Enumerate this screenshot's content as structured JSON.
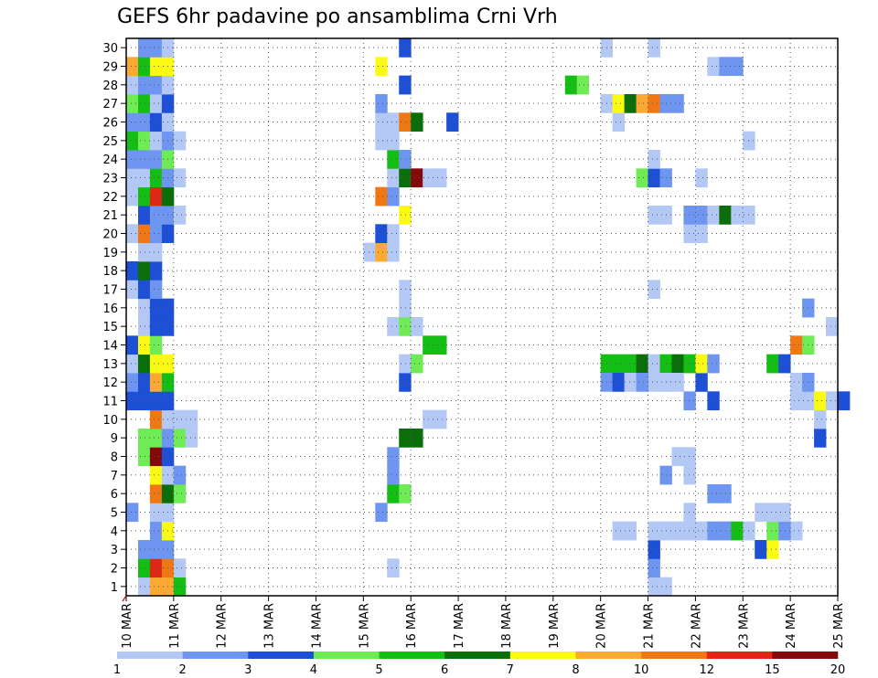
{
  "chart_data": {
    "type": "heatmap",
    "title": "GEFS 6hr padavine po ansamblima Crni Vrh",
    "xlabel": "",
    "ylabel": "",
    "x_tick_labels": [
      "10 MAR",
      "11 MAR",
      "12 MAR",
      "13 MAR",
      "14 MAR",
      "15 MAR",
      "16 MAR",
      "17 MAR",
      "18 MAR",
      "19 MAR",
      "20 MAR",
      "21 MAR",
      "22 MAR",
      "23 MAR",
      "24 MAR",
      "25 MAR"
    ],
    "y_tick_labels": [
      "1",
      "2",
      "3",
      "4",
      "5",
      "6",
      "7",
      "8",
      "9",
      "10",
      "11",
      "12",
      "13",
      "14",
      "15",
      "16",
      "17",
      "18",
      "19",
      "20",
      "21",
      "22",
      "23",
      "24",
      "25",
      "26",
      "27",
      "28",
      "29",
      "30"
    ],
    "x_range_hours": [
      0,
      360
    ],
    "y_range": [
      0.5,
      30.5
    ],
    "time_step_hours": 6,
    "grid": true,
    "colorbar": {
      "position": "bottom",
      "tick_labels": [
        "1",
        "2",
        "3",
        "4",
        "5",
        "6",
        "7",
        "8",
        "10",
        "12",
        "15",
        "20"
      ],
      "colors": [
        "#b4c8f5",
        "#6e96f0",
        "#1e50d7",
        "#6eeb55",
        "#14be14",
        "#0a6e0a",
        "#fafa14",
        "#faaa32",
        "#f07814",
        "#dc2814",
        "#820a0a"
      ]
    },
    "cells": [
      [
        1,
        1,
        0
      ],
      [
        1,
        2,
        7
      ],
      [
        1,
        3,
        7
      ],
      [
        1,
        4,
        4
      ],
      [
        2,
        1,
        4
      ],
      [
        2,
        2,
        9
      ],
      [
        2,
        3,
        8
      ],
      [
        2,
        4,
        0
      ],
      [
        3,
        1,
        1
      ],
      [
        3,
        2,
        1
      ],
      [
        3,
        3,
        1
      ],
      [
        4,
        2,
        1
      ],
      [
        4,
        3,
        6
      ],
      [
        5,
        0,
        1
      ],
      [
        5,
        2,
        0
      ],
      [
        5,
        3,
        0
      ],
      [
        6,
        2,
        8
      ],
      [
        6,
        3,
        5
      ],
      [
        6,
        4,
        3
      ],
      [
        7,
        2,
        6
      ],
      [
        7,
        3,
        0
      ],
      [
        7,
        4,
        1
      ],
      [
        8,
        1,
        3
      ],
      [
        8,
        2,
        10
      ],
      [
        8,
        3,
        2
      ],
      [
        9,
        1,
        3
      ],
      [
        9,
        2,
        3
      ],
      [
        9,
        3,
        1
      ],
      [
        9,
        4,
        3
      ],
      [
        9,
        5,
        0
      ],
      [
        10,
        2,
        8
      ],
      [
        10,
        3,
        0
      ],
      [
        10,
        4,
        0
      ],
      [
        10,
        5,
        0
      ],
      [
        11,
        0,
        2
      ],
      [
        11,
        1,
        2
      ],
      [
        11,
        2,
        2
      ],
      [
        11,
        3,
        2
      ],
      [
        12,
        0,
        1
      ],
      [
        12,
        1,
        2
      ],
      [
        12,
        2,
        7
      ],
      [
        12,
        3,
        4
      ],
      [
        13,
        0,
        0
      ],
      [
        13,
        1,
        5
      ],
      [
        13,
        2,
        6
      ],
      [
        13,
        3,
        6
      ],
      [
        14,
        0,
        2
      ],
      [
        14,
        1,
        6
      ],
      [
        14,
        2,
        3
      ],
      [
        15,
        1,
        0
      ],
      [
        15,
        2,
        2
      ],
      [
        15,
        3,
        2
      ],
      [
        16,
        1,
        0
      ],
      [
        16,
        2,
        2
      ],
      [
        16,
        3,
        2
      ],
      [
        17,
        0,
        0
      ],
      [
        17,
        1,
        2
      ],
      [
        17,
        2,
        1
      ],
      [
        18,
        0,
        2
      ],
      [
        18,
        1,
        5
      ],
      [
        18,
        2,
        2
      ],
      [
        19,
        1,
        0
      ],
      [
        19,
        2,
        0
      ],
      [
        20,
        0,
        0
      ],
      [
        20,
        1,
        8
      ],
      [
        20,
        2,
        1
      ],
      [
        20,
        3,
        2
      ],
      [
        21,
        1,
        2
      ],
      [
        21,
        2,
        1
      ],
      [
        21,
        3,
        1
      ],
      [
        21,
        4,
        0
      ],
      [
        22,
        0,
        0
      ],
      [
        22,
        1,
        4
      ],
      [
        22,
        2,
        9
      ],
      [
        22,
        3,
        5
      ],
      [
        23,
        0,
        0
      ],
      [
        23,
        1,
        0
      ],
      [
        23,
        2,
        4
      ],
      [
        23,
        3,
        1
      ],
      [
        23,
        4,
        0
      ],
      [
        24,
        0,
        1
      ],
      [
        24,
        1,
        1
      ],
      [
        24,
        2,
        1
      ],
      [
        24,
        3,
        3
      ],
      [
        25,
        0,
        4
      ],
      [
        25,
        1,
        3
      ],
      [
        25,
        2,
        0
      ],
      [
        25,
        3,
        1
      ],
      [
        25,
        4,
        0
      ],
      [
        26,
        0,
        1
      ],
      [
        26,
        1,
        1
      ],
      [
        26,
        2,
        2
      ],
      [
        26,
        3,
        0
      ],
      [
        27,
        0,
        3
      ],
      [
        27,
        1,
        4
      ],
      [
        27,
        2,
        0
      ],
      [
        27,
        3,
        2
      ],
      [
        28,
        0,
        0
      ],
      [
        28,
        1,
        1
      ],
      [
        28,
        2,
        1
      ],
      [
        28,
        3,
        0
      ],
      [
        29,
        0,
        7
      ],
      [
        29,
        1,
        4
      ],
      [
        29,
        2,
        6
      ],
      [
        29,
        3,
        6
      ],
      [
        30,
        1,
        1
      ],
      [
        30,
        2,
        1
      ],
      [
        30,
        3,
        0
      ],
      [
        2,
        22,
        0
      ],
      [
        5,
        21,
        1
      ],
      [
        6,
        22,
        4
      ],
      [
        6,
        23,
        3
      ],
      [
        7,
        22,
        1
      ],
      [
        8,
        22,
        1
      ],
      [
        9,
        23,
        5
      ],
      [
        9,
        24,
        5
      ],
      [
        10,
        25,
        0
      ],
      [
        10,
        26,
        0
      ],
      [
        12,
        23,
        2
      ],
      [
        13,
        23,
        0
      ],
      [
        13,
        24,
        3
      ],
      [
        14,
        25,
        4
      ],
      [
        14,
        26,
        4
      ],
      [
        15,
        22,
        0
      ],
      [
        15,
        23,
        3
      ],
      [
        15,
        24,
        0
      ],
      [
        16,
        23,
        0
      ],
      [
        17,
        23,
        0
      ],
      [
        19,
        20,
        0
      ],
      [
        19,
        21,
        7
      ],
      [
        19,
        22,
        0
      ],
      [
        20,
        21,
        2
      ],
      [
        20,
        22,
        0
      ],
      [
        21,
        23,
        6
      ],
      [
        22,
        21,
        8
      ],
      [
        22,
        22,
        1
      ],
      [
        23,
        22,
        0
      ],
      [
        23,
        23,
        5
      ],
      [
        23,
        24,
        10
      ],
      [
        23,
        25,
        0
      ],
      [
        23,
        26,
        0
      ],
      [
        24,
        22,
        4
      ],
      [
        24,
        23,
        1
      ],
      [
        25,
        21,
        0
      ],
      [
        25,
        22,
        0
      ],
      [
        26,
        21,
        0
      ],
      [
        26,
        22,
        0
      ],
      [
        26,
        23,
        8
      ],
      [
        26,
        24,
        5
      ],
      [
        26,
        27,
        2
      ],
      [
        27,
        21,
        1
      ],
      [
        28,
        23,
        2
      ],
      [
        29,
        21,
        6
      ],
      [
        30,
        23,
        2
      ],
      [
        1,
        44,
        0
      ],
      [
        1,
        45,
        0
      ],
      [
        2,
        44,
        1
      ],
      [
        3,
        44,
        2
      ],
      [
        4,
        41,
        0
      ],
      [
        4,
        42,
        0
      ],
      [
        4,
        44,
        0
      ],
      [
        4,
        45,
        0
      ],
      [
        4,
        46,
        0
      ],
      [
        4,
        47,
        0
      ],
      [
        4,
        48,
        0
      ],
      [
        4,
        49,
        1
      ],
      [
        4,
        50,
        1
      ],
      [
        4,
        51,
        4
      ],
      [
        4,
        52,
        0
      ],
      [
        4,
        56,
        0
      ],
      [
        5,
        47,
        0
      ],
      [
        5,
        53,
        0
      ],
      [
        6,
        49,
        1
      ],
      [
        6,
        50,
        1
      ],
      [
        7,
        45,
        1
      ],
      [
        7,
        47,
        0
      ],
      [
        8,
        46,
        0
      ],
      [
        8,
        47,
        0
      ],
      [
        9,
        58,
        2
      ],
      [
        11,
        47,
        1
      ],
      [
        11,
        49,
        2
      ],
      [
        12,
        44,
        0
      ],
      [
        12,
        48,
        2
      ],
      [
        13,
        54,
        4
      ],
      [
        13,
        55,
        2
      ],
      [
        13,
        40,
        4
      ],
      [
        13,
        41,
        4
      ],
      [
        13,
        42,
        4
      ],
      [
        13,
        43,
        5
      ],
      [
        13,
        44,
        0
      ],
      [
        13,
        45,
        4
      ],
      [
        13,
        46,
        5
      ],
      [
        13,
        47,
        4
      ],
      [
        13,
        48,
        6
      ],
      [
        13,
        49,
        1
      ],
      [
        3,
        53,
        2
      ],
      [
        3,
        54,
        6
      ],
      [
        4,
        54,
        3
      ],
      [
        4,
        55,
        1
      ],
      [
        5,
        54,
        0
      ],
      [
        5,
        55,
        0
      ],
      [
        10,
        58,
        0
      ],
      [
        11,
        57,
        0
      ],
      [
        12,
        40,
        1
      ],
      [
        12,
        41,
        2
      ],
      [
        12,
        42,
        0
      ],
      [
        12,
        43,
        1
      ],
      [
        12,
        45,
        0
      ],
      [
        12,
        46,
        0
      ],
      [
        12,
        56,
        0
      ],
      [
        12,
        57,
        1
      ],
      [
        11,
        56,
        0
      ],
      [
        11,
        58,
        6
      ],
      [
        11,
        59,
        0
      ],
      [
        11,
        60,
        2
      ],
      [
        14,
        56,
        8
      ],
      [
        14,
        57,
        3
      ],
      [
        15,
        59,
        0
      ],
      [
        16,
        57,
        1
      ],
      [
        17,
        44,
        0
      ],
      [
        20,
        47,
        0
      ],
      [
        20,
        48,
        0
      ],
      [
        21,
        44,
        0
      ],
      [
        21,
        45,
        0
      ],
      [
        21,
        47,
        1
      ],
      [
        21,
        48,
        1
      ],
      [
        21,
        49,
        0
      ],
      [
        21,
        50,
        5
      ],
      [
        21,
        51,
        0
      ],
      [
        21,
        52,
        0
      ],
      [
        23,
        43,
        3
      ],
      [
        23,
        44,
        2
      ],
      [
        23,
        45,
        1
      ],
      [
        23,
        48,
        0
      ],
      [
        25,
        52,
        0
      ],
      [
        26,
        41,
        0
      ],
      [
        27,
        40,
        0
      ],
      [
        27,
        41,
        6
      ],
      [
        27,
        42,
        5
      ],
      [
        27,
        43,
        7
      ],
      [
        27,
        44,
        8
      ],
      [
        27,
        45,
        1
      ],
      [
        27,
        46,
        1
      ],
      [
        28,
        37,
        4
      ],
      [
        28,
        38,
        3
      ],
      [
        29,
        49,
        0
      ],
      [
        29,
        50,
        1
      ],
      [
        29,
        51,
        1
      ],
      [
        30,
        40,
        0
      ],
      [
        30,
        44,
        0
      ],
      [
        24,
        44,
        0
      ]
    ]
  }
}
